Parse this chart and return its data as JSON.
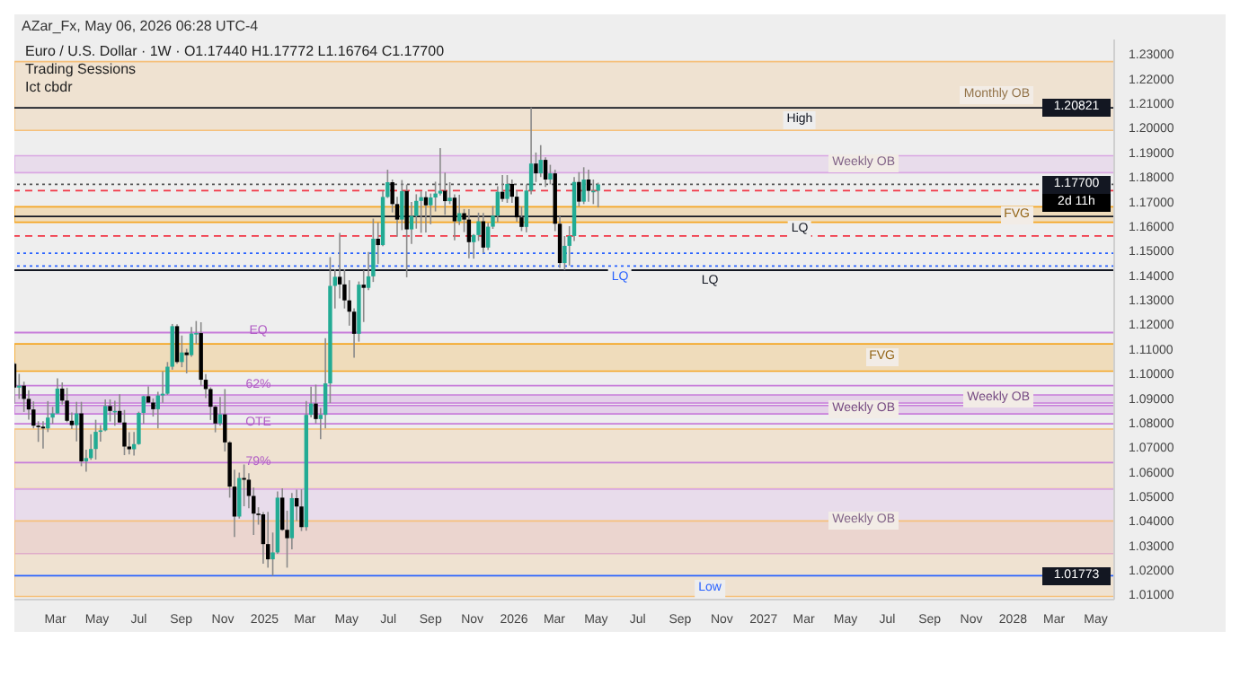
{
  "chart_data": {
    "type": "candlestick",
    "title": "Euro / U.S. Dollar · 1W · O1.17440 H1.17772 L1.16764 C1.17700",
    "annotations": [
      "AZar_Fx, May 06, 2026 06:28 UTC-4",
      "Trading Sessions",
      "Ict cbdr",
      {
        "text": "EQ",
        "x": "2024-12-23",
        "y": 1.1167
      },
      {
        "text": "62%",
        "x": "2024-12-23",
        "y": 1.0951
      },
      {
        "text": "OTE",
        "x": "2024-12-23",
        "y": 1.0796
      },
      {
        "text": "79%",
        "x": "2024-12-23",
        "y": 1.0638
      },
      {
        "text": "1.20821",
        "y": 1.20821
      },
      {
        "text": "1.01773",
        "y": 1.01773
      },
      {
        "text": "1.17700",
        "y": 1.177
      },
      {
        "text": "2d 11h",
        "y": 1.177
      }
    ],
    "colors": [
      "#000000",
      "#22ab94",
      "#000000",
      "#000000",
      "#000000",
      "#000000",
      "#000000",
      "#22ab94",
      "#22ab94",
      "#22ab94",
      "#000000",
      "#000000",
      "#000000",
      "#22ab94",
      "#000000",
      "#22ab94",
      "#22ab94",
      "#22ab94",
      "#22ab94",
      "#22ab94",
      "#000000",
      "#22ab94",
      "#000000",
      "#000000",
      "#000000",
      "#22ab94",
      "#22ab94",
      "#22ab94",
      "#000000",
      "#000000",
      "#22ab94",
      "#22ab94",
      "#22ab94",
      "#22ab94",
      "#000000",
      "#22ab94",
      "#000000",
      "#22ab94",
      "#22ab94",
      "#000000",
      "#000000",
      "#000000",
      "#000000",
      "#22ab94",
      "#000000",
      "#000000",
      "#000000",
      "#22ab94",
      "#000000",
      "#000000",
      "#000000",
      "#000000",
      "#000000",
      "#000000",
      "#22ab94",
      "#22ab94",
      "#000000",
      "#000000",
      "#22ab94",
      "#000000",
      "#000000",
      "#22ab94",
      "#22ab94",
      "#000000",
      "#22ab94",
      "#22ab94",
      "#22ab94",
      "#22ab94",
      "#000000",
      "#000000",
      "#000000",
      "#000000",
      "#22ab94",
      "#000000",
      "#22ab94",
      "#22ab94",
      "#000000",
      "#22ab94",
      "#22ab94",
      "#000000",
      "#000000",
      "#22ab94",
      "#000000",
      "#22ab94",
      "#22ab94",
      "#22ab94",
      "#000000",
      "#22ab94",
      "#22ab94",
      "#22ab94",
      "#000000",
      "#22ab94",
      "#000000",
      "#22ab94",
      "#000000",
      "#000000",
      "#22ab94",
      "#22ab94",
      "#000000",
      "#22ab94",
      "#22ab94",
      "#22ab94",
      "#000000",
      "#22ab94",
      "#000000",
      "#000000",
      "#000000",
      "#22ab94",
      "#22ab94",
      "#000000",
      "#22ab94",
      "#000000",
      "#22ab94",
      "#000000",
      "#000000",
      "#22ab94",
      "#22ab94",
      "#22ab94",
      "#000000",
      "#22ab94",
      "#000000",
      "#22ab94",
      "#22ab94"
    ],
    "x": [
      "2024-01-01",
      "2024-01-08",
      "2024-01-15",
      "2024-01-22",
      "2024-01-29",
      "2024-02-05",
      "2024-02-12",
      "2024-02-19",
      "2024-02-26",
      "2024-03-04",
      "2024-03-11",
      "2024-03-18",
      "2024-03-25",
      "2024-04-01",
      "2024-04-08",
      "2024-04-15",
      "2024-04-22",
      "2024-04-29",
      "2024-05-06",
      "2024-05-13",
      "2024-05-20",
      "2024-05-27",
      "2024-06-03",
      "2024-06-10",
      "2024-06-17",
      "2024-06-24",
      "2024-07-01",
      "2024-07-08",
      "2024-07-15",
      "2024-07-22",
      "2024-07-29",
      "2024-08-05",
      "2024-08-12",
      "2024-08-19",
      "2024-08-26",
      "2024-09-02",
      "2024-09-09",
      "2024-09-16",
      "2024-09-23",
      "2024-09-30",
      "2024-10-07",
      "2024-10-14",
      "2024-10-21",
      "2024-10-28",
      "2024-11-04",
      "2024-11-11",
      "2024-11-18",
      "2024-11-25",
      "2024-12-02",
      "2024-12-09",
      "2024-12-16",
      "2024-12-23",
      "2024-12-30",
      "2025-01-06",
      "2025-01-13",
      "2025-01-20",
      "2025-01-27",
      "2025-02-03",
      "2025-02-10",
      "2025-02-17",
      "2025-02-24",
      "2025-03-03",
      "2025-03-10",
      "2025-03-17",
      "2025-03-24",
      "2025-03-31",
      "2025-04-07",
      "2025-04-14",
      "2025-04-21",
      "2025-04-28",
      "2025-05-05",
      "2025-05-12",
      "2025-05-19",
      "2025-05-26",
      "2025-06-02",
      "2025-06-09",
      "2025-06-16",
      "2025-06-23",
      "2025-06-30",
      "2025-07-07",
      "2025-07-14",
      "2025-07-21",
      "2025-07-28",
      "2025-08-04",
      "2025-08-11",
      "2025-08-18",
      "2025-08-25",
      "2025-09-01",
      "2025-09-08",
      "2025-09-15",
      "2025-09-22",
      "2025-09-29",
      "2025-10-06",
      "2025-10-13",
      "2025-10-20",
      "2025-10-27",
      "2025-11-03",
      "2025-11-10",
      "2025-11-17",
      "2025-11-24",
      "2025-12-01",
      "2025-12-08",
      "2025-12-15",
      "2025-12-22",
      "2025-12-29",
      "2026-01-05",
      "2026-01-12",
      "2026-01-19",
      "2026-01-26",
      "2026-02-02",
      "2026-02-09",
      "2026-02-16",
      "2026-02-23",
      "2026-03-02",
      "2026-03-09",
      "2026-03-16",
      "2026-03-23",
      "2026-03-30",
      "2026-04-06",
      "2026-04-13",
      "2026-04-20",
      "2026-04-27",
      "2026-05-04"
    ],
    "ohlc": [
      [
        1.104,
        1.1046,
        1.0877,
        1.0943
      ],
      [
        1.0943,
        1.0999,
        1.0897,
        1.0951
      ],
      [
        1.0951,
        1.0967,
        1.0844,
        1.0897
      ],
      [
        1.0897,
        1.0932,
        1.0813,
        1.0854
      ],
      [
        1.0854,
        1.0887,
        1.0777,
        1.0788
      ],
      [
        1.0788,
        1.0806,
        1.0722,
        1.0784
      ],
      [
        1.0784,
        1.0806,
        1.0695,
        1.0777
      ],
      [
        1.0777,
        1.0888,
        1.0762,
        1.0821
      ],
      [
        1.0821,
        1.0865,
        1.0796,
        1.0838
      ],
      [
        1.0838,
        1.0981,
        1.0836,
        1.0939
      ],
      [
        1.0939,
        1.0964,
        1.0874,
        1.089
      ],
      [
        1.089,
        1.0942,
        1.0802,
        1.0808
      ],
      [
        1.0808,
        1.0842,
        1.0774,
        1.079
      ],
      [
        1.079,
        1.0885,
        1.0724,
        1.0838
      ],
      [
        1.0838,
        1.0885,
        1.0623,
        1.0643
      ],
      [
        1.0643,
        1.069,
        1.0601,
        1.0656
      ],
      [
        1.0656,
        1.0753,
        1.0649,
        1.0693
      ],
      [
        1.0693,
        1.0812,
        1.065,
        1.0763
      ],
      [
        1.0763,
        1.0791,
        1.0723,
        1.0769
      ],
      [
        1.0769,
        1.0895,
        1.0765,
        1.0868
      ],
      [
        1.0868,
        1.0895,
        1.0805,
        1.0848
      ],
      [
        1.0848,
        1.0889,
        1.0788,
        1.0848
      ],
      [
        1.0848,
        1.0916,
        1.0801,
        1.0801
      ],
      [
        1.0801,
        1.0852,
        1.0668,
        1.0703
      ],
      [
        1.0703,
        1.0761,
        1.0671,
        1.0692
      ],
      [
        1.0692,
        1.0762,
        1.0666,
        1.0713
      ],
      [
        1.0713,
        1.0845,
        1.071,
        1.084
      ],
      [
        1.084,
        1.091,
        1.0796,
        1.0908
      ],
      [
        1.0908,
        1.0948,
        1.0882,
        1.0882
      ],
      [
        1.0882,
        1.0899,
        1.0825,
        1.0855
      ],
      [
        1.0855,
        1.0926,
        1.0777,
        1.0911
      ],
      [
        1.0911,
        1.1009,
        1.0881,
        1.0918
      ],
      [
        1.0918,
        1.1047,
        1.0913,
        1.1028
      ],
      [
        1.1028,
        1.1202,
        1.1016,
        1.1193
      ],
      [
        1.1193,
        1.1201,
        1.104,
        1.1047
      ],
      [
        1.1047,
        1.1155,
        1.1026,
        1.1086
      ],
      [
        1.1086,
        1.1101,
        1.1001,
        1.1075
      ],
      [
        1.1075,
        1.119,
        1.1068,
        1.1163
      ],
      [
        1.1163,
        1.1214,
        1.112,
        1.1165
      ],
      [
        1.1165,
        1.1209,
        1.095,
        1.0975
      ],
      [
        1.0975,
        1.0998,
        1.09,
        1.0937
      ],
      [
        1.0937,
        1.0944,
        1.0811,
        1.0865
      ],
      [
        1.0865,
        1.0872,
        1.0761,
        1.0797
      ],
      [
        1.0797,
        1.0905,
        1.0788,
        1.0834
      ],
      [
        1.0834,
        1.0937,
        1.0683,
        1.072
      ],
      [
        1.072,
        1.0725,
        1.0495,
        1.054
      ],
      [
        1.054,
        1.0609,
        1.0335,
        1.0418
      ],
      [
        1.0418,
        1.0597,
        1.041,
        1.0575
      ],
      [
        1.0575,
        1.063,
        1.046,
        1.0568
      ],
      [
        1.0568,
        1.0594,
        1.0452,
        1.0502
      ],
      [
        1.0502,
        1.0536,
        1.0343,
        1.043
      ],
      [
        1.043,
        1.0456,
        1.0385,
        1.0427
      ],
      [
        1.0427,
        1.0436,
        1.0226,
        1.0306
      ],
      [
        1.0306,
        1.0437,
        1.021,
        1.0244
      ],
      [
        1.0244,
        1.0353,
        1.01773,
        1.0272
      ],
      [
        1.0272,
        1.052,
        1.0266,
        1.0495
      ],
      [
        1.0495,
        1.0533,
        1.036,
        1.0364
      ],
      [
        1.0364,
        1.0442,
        1.021,
        1.033
      ],
      [
        1.033,
        1.0514,
        1.0285,
        1.0493
      ],
      [
        1.0493,
        1.0528,
        1.04,
        1.0459
      ],
      [
        1.0459,
        1.0529,
        1.0359,
        1.0375
      ],
      [
        1.0375,
        1.0888,
        1.036,
        1.0832
      ],
      [
        1.0832,
        1.0947,
        1.0822,
        1.0878
      ],
      [
        1.0878,
        1.0955,
        1.0797,
        1.0815
      ],
      [
        1.0815,
        1.086,
        1.0733,
        1.0832
      ],
      [
        1.0832,
        1.1144,
        1.0777,
        1.096
      ],
      [
        1.096,
        1.1474,
        1.088,
        1.1357
      ],
      [
        1.1357,
        1.1424,
        1.1265,
        1.1394
      ],
      [
        1.1394,
        1.1573,
        1.1306,
        1.1363
      ],
      [
        1.1363,
        1.1425,
        1.1265,
        1.1298
      ],
      [
        1.1298,
        1.138,
        1.1195,
        1.1252
      ],
      [
        1.1252,
        1.1266,
        1.1065,
        1.1162
      ],
      [
        1.1162,
        1.1375,
        1.113,
        1.1362
      ],
      [
        1.1362,
        1.142,
        1.121,
        1.1349
      ],
      [
        1.1349,
        1.1495,
        1.134,
        1.1396
      ],
      [
        1.1396,
        1.1631,
        1.1373,
        1.1549
      ],
      [
        1.1549,
        1.1615,
        1.1446,
        1.1523
      ],
      [
        1.1523,
        1.1743,
        1.1519,
        1.1719
      ],
      [
        1.1719,
        1.183,
        1.1715,
        1.1779
      ],
      [
        1.1779,
        1.179,
        1.1656,
        1.169
      ],
      [
        1.169,
        1.172,
        1.1557,
        1.1627
      ],
      [
        1.1627,
        1.1788,
        1.1584,
        1.1743
      ],
      [
        1.1743,
        1.177,
        1.1392,
        1.1587
      ],
      [
        1.1587,
        1.1699,
        1.1528,
        1.1642
      ],
      [
        1.1642,
        1.173,
        1.159,
        1.1703
      ],
      [
        1.1703,
        1.1742,
        1.1573,
        1.1718
      ],
      [
        1.1718,
        1.1742,
        1.1574,
        1.1685
      ],
      [
        1.1685,
        1.1733,
        1.1608,
        1.1717
      ],
      [
        1.1717,
        1.1781,
        1.166,
        1.1733
      ],
      [
        1.1733,
        1.1918,
        1.1725,
        1.1744
      ],
      [
        1.1744,
        1.1818,
        1.1646,
        1.1702
      ],
      [
        1.1702,
        1.1779,
        1.169,
        1.1716
      ],
      [
        1.1716,
        1.173,
        1.1542,
        1.162
      ],
      [
        1.162,
        1.1728,
        1.1605,
        1.1653
      ],
      [
        1.1653,
        1.167,
        1.1576,
        1.1627
      ],
      [
        1.1627,
        1.1669,
        1.1469,
        1.1535
      ],
      [
        1.1535,
        1.1568,
        1.1468,
        1.1564
      ],
      [
        1.1564,
        1.1655,
        1.154,
        1.162
      ],
      [
        1.162,
        1.1654,
        1.1491,
        1.1513
      ],
      [
        1.1513,
        1.1614,
        1.1503,
        1.1598
      ],
      [
        1.1598,
        1.1682,
        1.1589,
        1.1643
      ],
      [
        1.1643,
        1.1763,
        1.1616,
        1.174
      ],
      [
        1.174,
        1.1808,
        1.17,
        1.1711
      ],
      [
        1.1711,
        1.1808,
        1.1695,
        1.1772
      ],
      [
        1.1772,
        1.179,
        1.1695,
        1.172
      ],
      [
        1.172,
        1.1745,
        1.1618,
        1.1636
      ],
      [
        1.1636,
        1.168,
        1.158,
        1.1597
      ],
      [
        1.1597,
        1.177,
        1.1575,
        1.1745
      ],
      [
        1.1745,
        1.20821,
        1.173,
        1.1855
      ],
      [
        1.1855,
        1.19,
        1.178,
        1.1815
      ],
      [
        1.1815,
        1.193,
        1.18,
        1.187
      ],
      [
        1.187,
        1.188,
        1.176,
        1.179
      ],
      [
        1.179,
        1.185,
        1.177,
        1.1815
      ],
      [
        1.1815,
        1.183,
        1.158,
        1.161
      ],
      [
        1.161,
        1.164,
        1.143,
        1.145
      ],
      [
        1.145,
        1.156,
        1.1421,
        1.152
      ],
      [
        1.152,
        1.16,
        1.144,
        1.156
      ],
      [
        1.156,
        1.18,
        1.154,
        1.178
      ],
      [
        1.178,
        1.182,
        1.168,
        1.17
      ],
      [
        1.17,
        1.184,
        1.169,
        1.179
      ],
      [
        1.179,
        1.183,
        1.17,
        1.1744
      ],
      [
        1.1744,
        1.179,
        1.169,
        1.1744
      ],
      [
        1.1744,
        1.17772,
        1.16764,
        1.177
      ]
    ],
    "xlim": [
      "2024-01-01",
      "2028-05-28"
    ],
    "xticks": [
      {
        "value": "2024-03-01",
        "label": "Mar"
      },
      {
        "value": "2024-05-01",
        "label": "May"
      },
      {
        "value": "2024-07-01",
        "label": "Jul"
      },
      {
        "value": "2024-09-01",
        "label": "Sep"
      },
      {
        "value": "2024-11-01",
        "label": "Nov"
      },
      {
        "value": "2025-01-01",
        "label": "2025"
      },
      {
        "value": "2025-03-01",
        "label": "Mar"
      },
      {
        "value": "2025-05-01",
        "label": "May"
      },
      {
        "value": "2025-07-01",
        "label": "Jul"
      },
      {
        "value": "2025-09-01",
        "label": "Sep"
      },
      {
        "value": "2025-11-01",
        "label": "Nov"
      },
      {
        "value": "2026-01-01",
        "label": "2026"
      },
      {
        "value": "2026-03-01",
        "label": "Mar"
      },
      {
        "value": "2026-05-01",
        "label": "May"
      },
      {
        "value": "2026-07-01",
        "label": "Jul"
      },
      {
        "value": "2026-09-01",
        "label": "Sep"
      },
      {
        "value": "2026-11-01",
        "label": "Nov"
      },
      {
        "value": "2027-01-01",
        "label": "2027"
      },
      {
        "value": "2027-03-01",
        "label": "Mar"
      },
      {
        "value": "2027-05-01",
        "label": "May"
      },
      {
        "value": "2027-07-01",
        "label": "Jul"
      },
      {
        "value": "2027-09-01",
        "label": "Sep"
      },
      {
        "value": "2027-11-01",
        "label": "Nov"
      },
      {
        "value": "2028-01-01",
        "label": "2028"
      },
      {
        "value": "2028-03-01",
        "label": "Mar"
      },
      {
        "value": "2028-05-01",
        "label": "May"
      }
    ],
    "ylim": [
      1.008,
      1.236
    ],
    "yticks": [
      {
        "value": 1.01,
        "label": "1.01000"
      },
      {
        "value": 1.02,
        "label": "1.02000"
      },
      {
        "value": 1.03,
        "label": "1.03000"
      },
      {
        "value": 1.04,
        "label": "1.04000"
      },
      {
        "value": 1.05,
        "label": "1.05000"
      },
      {
        "value": 1.06,
        "label": "1.06000"
      },
      {
        "value": 1.07,
        "label": "1.07000"
      },
      {
        "value": 1.08,
        "label": "1.08000"
      },
      {
        "value": 1.09,
        "label": "1.09000"
      },
      {
        "value": 1.1,
        "label": "1.10000"
      },
      {
        "value": 1.11,
        "label": "1.11000"
      },
      {
        "value": 1.12,
        "label": "1.12000"
      },
      {
        "value": 1.13,
        "label": "1.13000"
      },
      {
        "value": 1.14,
        "label": "1.14000"
      },
      {
        "value": 1.15,
        "label": "1.15000"
      },
      {
        "value": 1.16,
        "label": "1.16000"
      },
      {
        "value": 1.17,
        "label": "1.17000"
      },
      {
        "value": 1.18,
        "label": "1.18000"
      },
      {
        "value": 1.19,
        "label": "1.19000"
      },
      {
        "value": 1.2,
        "label": "1.20000"
      },
      {
        "value": 1.21,
        "label": "1.21000"
      },
      {
        "value": 1.22,
        "label": "1.22000"
      },
      {
        "value": 1.23,
        "label": "1.23000"
      }
    ],
    "ref_lines": [
      {
        "axis": "y",
        "value": 1.20821,
        "label": "High",
        "color": "#131722",
        "line_style": "solid"
      },
      {
        "axis": "y",
        "value": 1.01773,
        "label": "Low",
        "color": "#2962ff",
        "line_style": "solid"
      },
      {
        "axis": "y",
        "value": 1.177,
        "color": "#555555",
        "line_style": "dotted"
      },
      {
        "axis": "y",
        "value": 1.1745,
        "color": "#f23645",
        "line_style": "dashed"
      },
      {
        "axis": "y",
        "value": 1.156,
        "color": "#f23645",
        "line_style": "dashed"
      },
      {
        "axis": "y",
        "value": 1.1167,
        "color": "#c77dda",
        "line_style": "solid"
      },
      {
        "axis": "y",
        "value": 1.0951,
        "color": "#c77dda",
        "line_style": "solid"
      },
      {
        "axis": "y",
        "value": 1.0796,
        "color": "#c77dda",
        "line_style": "solid"
      },
      {
        "axis": "y",
        "value": 1.0638,
        "color": "#c77dda",
        "line_style": "solid"
      },
      {
        "axis": "y",
        "value": 1.149,
        "color": "#2962ff",
        "line_style": "dotted"
      },
      {
        "axis": "y",
        "value": 1.1421,
        "label": "LQ",
        "color": "#131722",
        "line_style": "solid"
      },
      {
        "axis": "y",
        "value": 1.1438,
        "label": "LQ",
        "color": "#2962ff",
        "line_style": "dotted"
      },
      {
        "axis": "y",
        "value": 1.164,
        "label": "LQ",
        "color": "#131722",
        "line_style": "solid"
      }
    ],
    "bands": [
      {
        "axis": "y",
        "from": 1.199,
        "to": 1.227,
        "label": "Monthly OB",
        "color": "#f5c07a"
      },
      {
        "axis": "y",
        "from": 1.1818,
        "to": 1.1887,
        "label": "Weekly OB",
        "color": "#d9a6e3"
      },
      {
        "axis": "y",
        "from": 1.1616,
        "to": 1.1679,
        "label": "FVG",
        "color": "#f5a623"
      },
      {
        "axis": "y",
        "from": 1.101,
        "to": 1.1121,
        "label": "FVG",
        "color": "#f5a623"
      },
      {
        "axis": "y",
        "from": 1.088,
        "to": 1.0913,
        "label": "Weekly OB",
        "color": "#c77dda"
      },
      {
        "axis": "y",
        "from": 1.0836,
        "to": 1.087,
        "label": "Weekly OB",
        "color": "#c77dda"
      },
      {
        "axis": "y",
        "from": 1.0531,
        "to": 1.0774,
        "color": "#f5c07a"
      },
      {
        "axis": "y",
        "from": 1.0267,
        "to": 1.053,
        "label": "Weekly OB",
        "color": "#d9a6e3"
      },
      {
        "axis": "y",
        "from": 1.0093,
        "to": 1.04,
        "color": "#f5c07a"
      }
    ]
  }
}
